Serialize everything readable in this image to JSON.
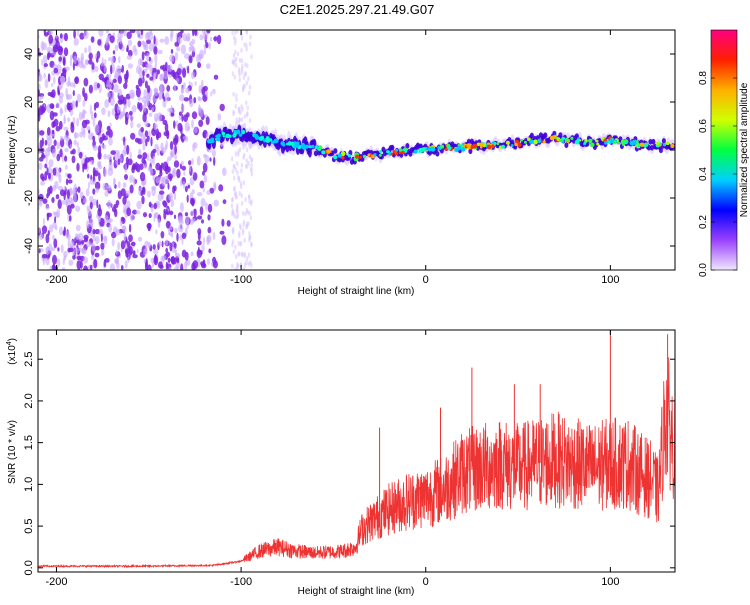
{
  "title": "C2E1.2025.297.21.49.G07",
  "chart_data": [
    {
      "type": "heatmap",
      "name": "spectrogram",
      "xlabel": "Height of straight line (km)",
      "ylabel": "Frequency (Hz)",
      "xlim": [
        -210,
        135
      ],
      "ylim": [
        -50,
        50
      ],
      "xticks": [
        -200,
        -100,
        0,
        100
      ],
      "xticklabels": [
        "-200",
        "-100",
        "0",
        "100"
      ],
      "yticks": [
        -40,
        -20,
        0,
        20,
        40
      ],
      "yticklabels": [
        "-40",
        "-20",
        "0",
        "20",
        "40"
      ],
      "noise_region_km": [
        -210,
        -105
      ],
      "signal_track_km": [
        -118,
        135
      ],
      "track_frequency_hz": [
        {
          "x": -118,
          "f": 3
        },
        {
          "x": -110,
          "f": 6
        },
        {
          "x": -100,
          "f": 7
        },
        {
          "x": -90,
          "f": 5
        },
        {
          "x": -80,
          "f": 3
        },
        {
          "x": -70,
          "f": 2
        },
        {
          "x": -60,
          "f": 1
        },
        {
          "x": -50,
          "f": -2
        },
        {
          "x": -40,
          "f": -3
        },
        {
          "x": -30,
          "f": -2
        },
        {
          "x": -20,
          "f": -1
        },
        {
          "x": -10,
          "f": 0
        },
        {
          "x": 0,
          "f": 0
        },
        {
          "x": 10,
          "f": 1
        },
        {
          "x": 20,
          "f": 1
        },
        {
          "x": 30,
          "f": 2
        },
        {
          "x": 40,
          "f": 2
        },
        {
          "x": 50,
          "f": 3
        },
        {
          "x": 60,
          "f": 4
        },
        {
          "x": 70,
          "f": 5
        },
        {
          "x": 80,
          "f": 4
        },
        {
          "x": 90,
          "f": 3
        },
        {
          "x": 100,
          "f": 4
        },
        {
          "x": 110,
          "f": 3
        },
        {
          "x": 120,
          "f": 2
        },
        {
          "x": 135,
          "f": 2
        }
      ],
      "colorbar": {
        "label": "Normalized spectral amplitude",
        "range": [
          0,
          1
        ],
        "ticks": [
          0.0,
          0.2,
          0.4,
          0.6,
          0.8
        ],
        "ticklabels": [
          "0.0",
          "0.2",
          "0.4",
          "0.6",
          "0.8"
        ],
        "colors": [
          "#f0e6ff",
          "#9a40ff",
          "#0000ff",
          "#00d0ff",
          "#00ff40",
          "#d0ff00",
          "#ffb000",
          "#ff2000",
          "#ff0080"
        ]
      }
    },
    {
      "type": "line",
      "name": "snr",
      "xlabel": "Height of straight line (km)",
      "ylabel": "SNR (10 * v/v)",
      "scale_label": "(x10",
      "scale_exponent": "4",
      "scale_suffix": ")",
      "xlim": [
        -210,
        135
      ],
      "ylim": [
        -0.05,
        2.85
      ],
      "xticks": [
        -200,
        -100,
        0,
        100
      ],
      "xticklabels": [
        "-200",
        "-100",
        "0",
        "100"
      ],
      "yticks": [
        0.0,
        0.5,
        1.0,
        1.5,
        2.0,
        2.5
      ],
      "yticklabels": [
        "0.0",
        "0.5",
        "1.0",
        "1.5",
        "2.0",
        "2.5"
      ],
      "color": "#ee3333",
      "series": [
        {
          "x": -210,
          "y": 0.02
        },
        {
          "x": -150,
          "y": 0.02
        },
        {
          "x": -115,
          "y": 0.03
        },
        {
          "x": -100,
          "y": 0.08
        },
        {
          "x": -90,
          "y": 0.2
        },
        {
          "x": -80,
          "y": 0.25
        },
        {
          "x": -70,
          "y": 0.2
        },
        {
          "x": -60,
          "y": 0.18
        },
        {
          "x": -45,
          "y": 0.2
        },
        {
          "x": -38,
          "y": 0.25
        },
        {
          "x": -35,
          "y": 0.45
        },
        {
          "x": -30,
          "y": 0.55
        },
        {
          "x": -20,
          "y": 0.7
        },
        {
          "x": -10,
          "y": 0.8
        },
        {
          "x": 0,
          "y": 0.85
        },
        {
          "x": 10,
          "y": 0.95
        },
        {
          "x": 20,
          "y": 1.15
        },
        {
          "x": 30,
          "y": 1.2
        },
        {
          "x": 40,
          "y": 1.25
        },
        {
          "x": 50,
          "y": 1.2
        },
        {
          "x": 60,
          "y": 1.25
        },
        {
          "x": 70,
          "y": 1.3
        },
        {
          "x": 80,
          "y": 1.25
        },
        {
          "x": 90,
          "y": 1.2
        },
        {
          "x": 100,
          "y": 1.25
        },
        {
          "x": 110,
          "y": 1.25
        },
        {
          "x": 115,
          "y": 1.15
        },
        {
          "x": 122,
          "y": 1.05
        },
        {
          "x": 126,
          "y": 0.9
        },
        {
          "x": 130,
          "y": 1.9
        },
        {
          "x": 135,
          "y": 1.4
        }
      ],
      "spikes": [
        {
          "x": -25,
          "y": 1.68
        },
        {
          "x": 8,
          "y": 1.92
        },
        {
          "x": 25,
          "y": 2.4
        },
        {
          "x": 48,
          "y": 2.2
        },
        {
          "x": 62,
          "y": 2.2
        },
        {
          "x": 100,
          "y": 2.85
        },
        {
          "x": 131,
          "y": 2.8
        }
      ]
    }
  ]
}
